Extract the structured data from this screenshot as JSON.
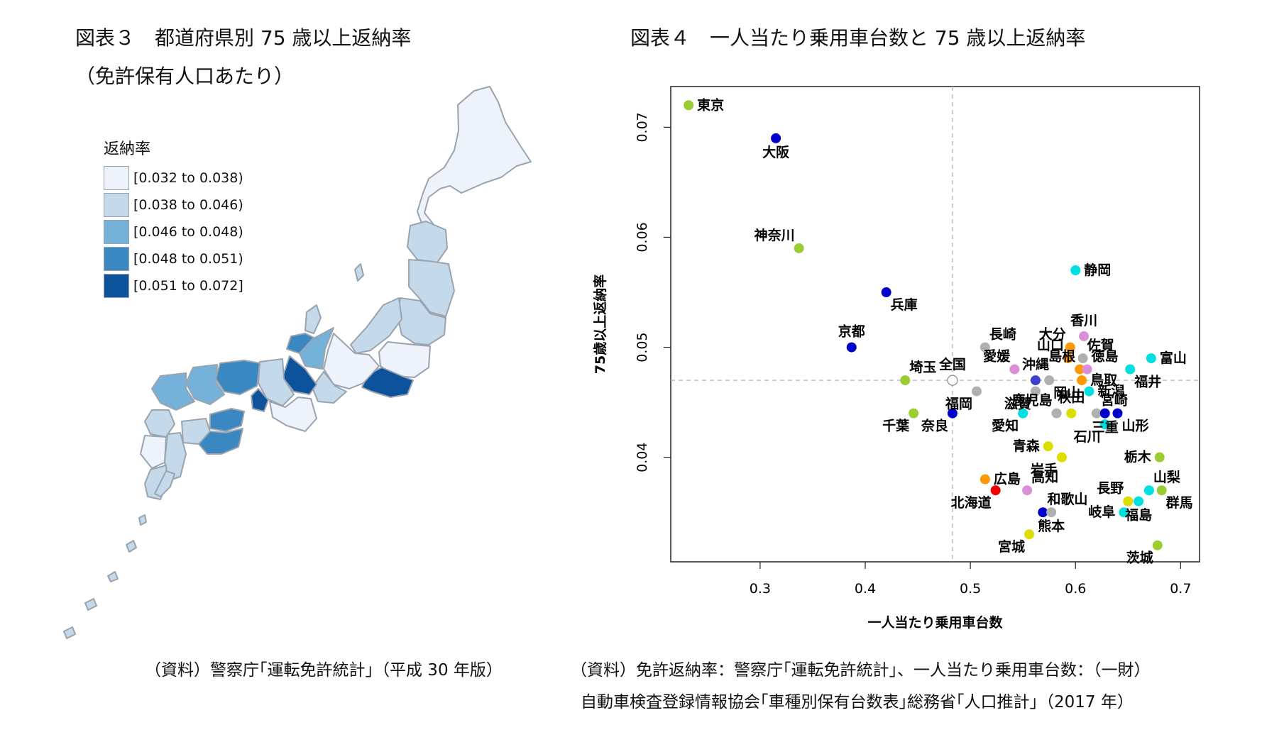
{
  "map": {
    "title": "図表３　都道府県別 75 歳以上返納率",
    "subtitle": "（免許保有人口あたり）",
    "legend_title": "返納率",
    "legend": [
      {
        "label": "[0.032 to 0.038)",
        "color": "#eef2fb"
      },
      {
        "label": "[0.038 to 0.046)",
        "color": "#c4d9ea"
      },
      {
        "label": "[0.046 to 0.048)",
        "color": "#76b1d9"
      },
      {
        "label": "[0.048 to 0.051)",
        "color": "#3a87c2"
      },
      {
        "label": "[0.051 to 0.072]",
        "color": "#0d539c"
      }
    ],
    "source": "（資料）警察庁｢運転免許統計｣（平成 30 年版）"
  },
  "scatter": {
    "title": "図表４　一人当たり乗用車台数と 75 歳以上返納率",
    "source_line1": "（資料）免許返納率：警察庁｢運転免許統計｣、一人当たり乗用車台数：（一財）",
    "source_line2": "自動車検査登録情報協会｢車種別保有台数表｣総務省｢人口推計｣（2017 年）"
  },
  "chart_data": {
    "type": "scatter",
    "title": "",
    "xlabel": "一人当たり乗用車台数",
    "ylabel": "75歳以上返納率",
    "xlim": [
      0.215,
      0.718
    ],
    "ylim": [
      0.0305,
      0.0737
    ],
    "xticks": [
      0.3,
      0.4,
      0.5,
      0.6,
      0.7
    ],
    "xtick_labels": [
      "0.3",
      "0.4",
      "0.5",
      "0.6",
      "0.7"
    ],
    "yticks": [
      0.04,
      0.05,
      0.06,
      0.07
    ],
    "ytick_labels": [
      "0.04",
      "0.05",
      "0.06",
      "0.07"
    ],
    "reference_lines": {
      "x": 0.483,
      "y": 0.047
    },
    "grid": false,
    "points": [
      {
        "label": "東京",
        "x": 0.232,
        "y": 0.072,
        "color": "#9acd32",
        "lpos": "r"
      },
      {
        "label": "大阪",
        "x": 0.315,
        "y": 0.069,
        "color": "#0000cd",
        "lpos": "b"
      },
      {
        "label": "神奈川",
        "x": 0.337,
        "y": 0.059,
        "color": "#9acd32",
        "lpos": "tl"
      },
      {
        "label": "兵庫",
        "x": 0.42,
        "y": 0.055,
        "color": "#0000cd",
        "lpos": "br"
      },
      {
        "label": "京都",
        "x": 0.387,
        "y": 0.05,
        "color": "#0000cd",
        "lpos": "t"
      },
      {
        "label": "埼玉",
        "x": 0.438,
        "y": 0.047,
        "color": "#9acd32",
        "lpos": "tr"
      },
      {
        "label": "全国",
        "x": 0.483,
        "y": 0.047,
        "color": "#ffffff",
        "lpos": "t"
      },
      {
        "label": "千葉",
        "x": 0.446,
        "y": 0.044,
        "color": "#9acd32",
        "lpos": "bl"
      },
      {
        "label": "奈良",
        "x": 0.483,
        "y": 0.044,
        "color": "#0000cd",
        "lpos": "bl"
      },
      {
        "label": "福岡",
        "x": 0.506,
        "y": 0.046,
        "color": "#b0b0b0",
        "lpos": "bl"
      },
      {
        "label": "長崎",
        "x": 0.514,
        "y": 0.05,
        "color": "#b0b0b0",
        "lpos": "tr"
      },
      {
        "label": "愛媛",
        "x": 0.542,
        "y": 0.048,
        "color": "#da8fd6",
        "lpos": "tl"
      },
      {
        "label": "沖縄",
        "x": 0.562,
        "y": 0.047,
        "color": "#4040d0",
        "lpos": "t"
      },
      {
        "label": "滋賀",
        "x": 0.562,
        "y": 0.046,
        "color": "#b0b0b0",
        "lpos": "bl"
      },
      {
        "label": "岡山",
        "x": 0.575,
        "y": 0.047,
        "color": "#b0b0b0",
        "lpos": "br"
      },
      {
        "label": "鹿児島",
        "x": 0.582,
        "y": 0.044,
        "color": "#b0b0b0",
        "lpos": "tl"
      },
      {
        "label": "秋田",
        "x": 0.596,
        "y": 0.044,
        "color": "#dddd00",
        "lpos": "t"
      },
      {
        "label": "愛知",
        "x": 0.55,
        "y": 0.044,
        "color": "#00e0e0",
        "lpos": "bl"
      },
      {
        "label": "香川",
        "x": 0.608,
        "y": 0.051,
        "color": "#da8fd6",
        "lpos": "t"
      },
      {
        "label": "大分",
        "x": 0.595,
        "y": 0.05,
        "color": "#ff9900",
        "lpos": "tl"
      },
      {
        "label": "山口",
        "x": 0.593,
        "y": 0.049,
        "color": "#ff9900",
        "lpos": "tl"
      },
      {
        "label": "佐賀",
        "x": 0.607,
        "y": 0.049,
        "color": "#b0b0b0",
        "lpos": "tr"
      },
      {
        "label": "島根",
        "x": 0.604,
        "y": 0.048,
        "color": "#ff9900",
        "lpos": "tl"
      },
      {
        "label": "徳島",
        "x": 0.611,
        "y": 0.048,
        "color": "#da8fd6",
        "lpos": "tr"
      },
      {
        "label": "鳥取",
        "x": 0.606,
        "y": 0.047,
        "color": "#ff9900",
        "lpos": "r"
      },
      {
        "label": "新潟",
        "x": 0.613,
        "y": 0.046,
        "color": "#00e0e0",
        "lpos": "r"
      },
      {
        "label": "宮崎",
        "x": 0.62,
        "y": 0.044,
        "color": "#b0b0b0",
        "lpos": "tr"
      },
      {
        "label": "三重",
        "x": 0.628,
        "y": 0.044,
        "color": "#0000cd",
        "lpos": "b"
      },
      {
        "label": "山形",
        "x": 0.64,
        "y": 0.044,
        "color": "#0000cd",
        "lpos": "br"
      },
      {
        "label": "石川",
        "x": 0.628,
        "y": 0.043,
        "color": "#00e0e0",
        "lpos": "bl"
      },
      {
        "label": "静岡",
        "x": 0.6,
        "y": 0.057,
        "color": "#00e0e0",
        "lpos": "r"
      },
      {
        "label": "富山",
        "x": 0.672,
        "y": 0.049,
        "color": "#00e0e0",
        "lpos": "r"
      },
      {
        "label": "福井",
        "x": 0.652,
        "y": 0.048,
        "color": "#00e0e0",
        "lpos": "br"
      },
      {
        "label": "青森",
        "x": 0.574,
        "y": 0.041,
        "color": "#dddd00",
        "lpos": "l"
      },
      {
        "label": "岩手",
        "x": 0.587,
        "y": 0.04,
        "color": "#dddd00",
        "lpos": "bl"
      },
      {
        "label": "栃木",
        "x": 0.68,
        "y": 0.04,
        "color": "#9acd32",
        "lpos": "l"
      },
      {
        "label": "広島",
        "x": 0.514,
        "y": 0.038,
        "color": "#ff9900",
        "lpos": "r"
      },
      {
        "label": "北海道",
        "x": 0.524,
        "y": 0.037,
        "color": "#ee0000",
        "lpos": "bl"
      },
      {
        "label": "高知",
        "x": 0.554,
        "y": 0.037,
        "color": "#da8fd6",
        "lpos": "tr"
      },
      {
        "label": "長野",
        "x": 0.65,
        "y": 0.036,
        "color": "#dddd00",
        "lpos": "tl"
      },
      {
        "label": "山梨",
        "x": 0.67,
        "y": 0.037,
        "color": "#00e0e0",
        "lpos": "tr"
      },
      {
        "label": "群馬",
        "x": 0.682,
        "y": 0.037,
        "color": "#9acd32",
        "lpos": "br"
      },
      {
        "label": "福島",
        "x": 0.66,
        "y": 0.036,
        "color": "#00e0e0",
        "lpos": "b"
      },
      {
        "label": "岐阜",
        "x": 0.646,
        "y": 0.035,
        "color": "#00e0e0",
        "lpos": "l"
      },
      {
        "label": "和歌山",
        "x": 0.569,
        "y": 0.035,
        "color": "#0000cd",
        "lpos": "tr"
      },
      {
        "label": "熊本",
        "x": 0.577,
        "y": 0.035,
        "color": "#b0b0b0",
        "lpos": "b"
      },
      {
        "label": "宮城",
        "x": 0.556,
        "y": 0.033,
        "color": "#dddd00",
        "lpos": "bl"
      },
      {
        "label": "茨城",
        "x": 0.678,
        "y": 0.032,
        "color": "#9acd32",
        "lpos": "bl"
      }
    ]
  }
}
